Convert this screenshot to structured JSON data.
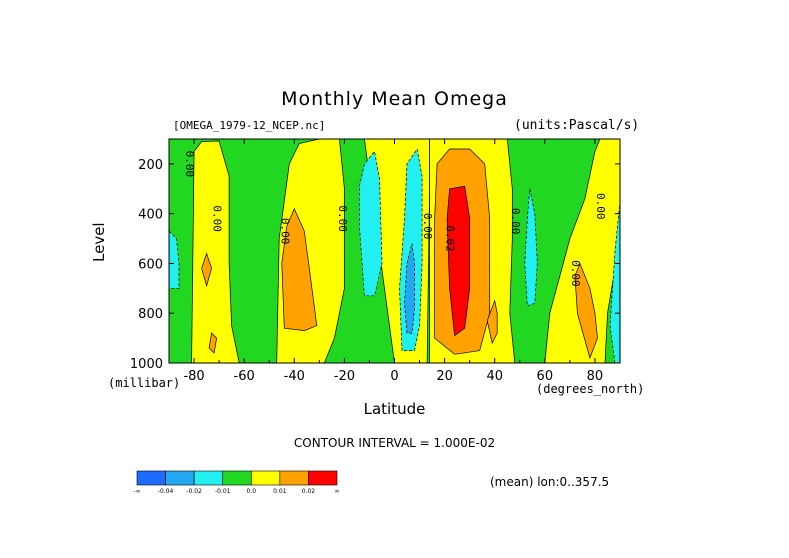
{
  "chart_data": {
    "type": "heatmap",
    "title": "Monthly Mean Omega",
    "subtitle_left": "[OMEGA_1979-12_NCEP.nc]",
    "subtitle_right": "(units:Pascal/s)",
    "xlabel": "Latitude",
    "x_units": "(degrees_north)",
    "ylabel": "Level",
    "y_units": "(millibar)",
    "xlim": [
      -90,
      90
    ],
    "ylim": [
      1000,
      100
    ],
    "x_ticks": [
      -80,
      -60,
      -40,
      -20,
      0,
      20,
      40,
      60,
      80
    ],
    "y_ticks": [
      200,
      400,
      600,
      800,
      1000
    ],
    "contour_interval_text": "CONTOUR INTERVAL = 1.000E-02",
    "annotation": "(mean) lon:0..357.5",
    "legend": {
      "colors": [
        "#1f6bff",
        "#22a7f0",
        "#22f0f0",
        "#22d722",
        "#ffff00",
        "#ffa200",
        "#ff0000"
      ],
      "labels": [
        "-∞",
        "-0.04",
        "-0.02",
        "-0.01",
        "0.0",
        "0.01",
        "0.02",
        "∞"
      ]
    },
    "contour_labels": [
      {
        "text": "0.00",
        "lat": -82,
        "lev": 200
      },
      {
        "text": "0.00",
        "lat": -71,
        "lev": 420
      },
      {
        "text": "0.00",
        "lat": -44,
        "lev": 470
      },
      {
        "text": "0.00",
        "lat": -21,
        "lev": 420
      },
      {
        "text": "0.00",
        "lat": 13,
        "lev": 450
      },
      {
        "text": "0.02",
        "lat": 22,
        "lev": 500
      },
      {
        "text": "0.00",
        "lat": 48,
        "lev": 430
      },
      {
        "text": "0.00",
        "lat": 72,
        "lev": 640
      },
      {
        "text": "0.00",
        "lat": 82,
        "lev": 370
      }
    ],
    "regions": [
      {
        "value": 0.005,
        "points": [
          [
            -81,
            1000
          ],
          [
            -80,
            150
          ],
          [
            -77,
            110
          ],
          [
            -70,
            108
          ],
          [
            -66,
            250
          ],
          [
            -66,
            600
          ],
          [
            -65,
            850
          ],
          [
            -62,
            1000
          ]
        ]
      },
      {
        "value": 0.005,
        "points": [
          [
            -47,
            1000
          ],
          [
            -46,
            500
          ],
          [
            -42,
            200
          ],
          [
            -38,
            118
          ],
          [
            -30,
            100
          ],
          [
            -22,
            100
          ],
          [
            -20,
            300
          ],
          [
            -20,
            700
          ],
          [
            -24,
            900
          ],
          [
            -28,
            1000
          ]
        ]
      },
      {
        "value": 0.005,
        "points": [
          [
            -12,
            100
          ],
          [
            0,
            100
          ],
          [
            8,
            100
          ],
          [
            14,
            100
          ],
          [
            14,
            300
          ],
          [
            13,
            1000
          ],
          [
            0,
            1000
          ]
        ]
      },
      {
        "value": 0.005,
        "points": [
          [
            14,
            100
          ],
          [
            35,
            100
          ],
          [
            45,
            100
          ],
          [
            47,
            300
          ],
          [
            47,
            500
          ],
          [
            46,
            800
          ],
          [
            48,
            1000
          ],
          [
            14,
            1000
          ]
        ]
      },
      {
        "value": 0.005,
        "points": [
          [
            60,
            1000
          ],
          [
            62,
            800
          ],
          [
            66,
            650
          ],
          [
            70,
            500
          ],
          [
            76,
            340
          ],
          [
            80,
            150
          ],
          [
            82,
            100
          ],
          [
            90,
            100
          ],
          [
            90,
            500
          ],
          [
            85,
            800
          ],
          [
            84,
            1000
          ]
        ]
      },
      {
        "value": 0.015,
        "points": [
          [
            -44,
            860
          ],
          [
            -45,
            600
          ],
          [
            -43,
            450
          ],
          [
            -40,
            380
          ],
          [
            -36,
            470
          ],
          [
            -34,
            620
          ],
          [
            -31,
            850
          ],
          [
            -36,
            870
          ]
        ]
      },
      {
        "value": 0.015,
        "points": [
          [
            -75,
            560
          ],
          [
            -77,
            620
          ],
          [
            -75,
            690
          ],
          [
            -73,
            620
          ]
        ]
      },
      {
        "value": 0.015,
        "points": [
          [
            -73,
            880
          ],
          [
            -74,
            940
          ],
          [
            -72,
            960
          ],
          [
            -71,
            900
          ]
        ]
      },
      {
        "value": 0.015,
        "points": [
          [
            16,
            900
          ],
          [
            16,
            420
          ],
          [
            17,
            200
          ],
          [
            22,
            140
          ],
          [
            30,
            140
          ],
          [
            36,
            200
          ],
          [
            38,
            420
          ],
          [
            38,
            800
          ],
          [
            34,
            950
          ],
          [
            24,
            965
          ]
        ]
      },
      {
        "value": 0.015,
        "points": [
          [
            40,
            750
          ],
          [
            41,
            800
          ],
          [
            41,
            880
          ],
          [
            39,
            920
          ],
          [
            37,
            830
          ]
        ]
      },
      {
        "value": 0.015,
        "points": [
          [
            81,
            900
          ],
          [
            80,
            800
          ],
          [
            78,
            700
          ],
          [
            74,
            600
          ],
          [
            72,
            650
          ],
          [
            73,
            800
          ],
          [
            78,
            980
          ]
        ]
      },
      {
        "value": 0.025,
        "points": [
          [
            24,
            890
          ],
          [
            22,
            700
          ],
          [
            21,
            420
          ],
          [
            22,
            300
          ],
          [
            28,
            290
          ],
          [
            30,
            420
          ],
          [
            30,
            700
          ],
          [
            28,
            860
          ]
        ]
      },
      {
        "value": -0.015,
        "points": [
          [
            -14,
            290
          ],
          [
            -12,
            200
          ],
          [
            -8,
            150
          ],
          [
            -6,
            260
          ],
          [
            -5,
            600
          ],
          [
            -8,
            730
          ],
          [
            -12,
            730
          ],
          [
            -14,
            450
          ]
        ]
      },
      {
        "value": -0.015,
        "points": [
          [
            3,
            950
          ],
          [
            2,
            700
          ],
          [
            4,
            420
          ],
          [
            5,
            200
          ],
          [
            9,
            140
          ],
          [
            11,
            250
          ],
          [
            11,
            600
          ],
          [
            10,
            850
          ],
          [
            8,
            950
          ]
        ]
      },
      {
        "value": -0.015,
        "points": [
          [
            54,
            300
          ],
          [
            56,
            400
          ],
          [
            57,
            600
          ],
          [
            56,
            760
          ],
          [
            53,
            770
          ],
          [
            52,
            600
          ],
          [
            53,
            420
          ]
        ]
      },
      {
        "value": -0.015,
        "points": [
          [
            88,
            1000
          ],
          [
            86,
            850
          ],
          [
            88,
            550
          ],
          [
            90,
            350
          ],
          [
            90,
            1000
          ]
        ]
      },
      {
        "value": -0.015,
        "points": [
          [
            -90,
            470
          ],
          [
            -87,
            500
          ],
          [
            -86,
            600
          ],
          [
            -86,
            700
          ],
          [
            -88,
            700
          ],
          [
            -90,
            700
          ]
        ]
      },
      {
        "value": -0.03,
        "points": [
          [
            5,
            880
          ],
          [
            4,
            760
          ],
          [
            5,
            600
          ],
          [
            7,
            520
          ],
          [
            8,
            600
          ],
          [
            8,
            780
          ],
          [
            7,
            880
          ]
        ]
      }
    ]
  }
}
